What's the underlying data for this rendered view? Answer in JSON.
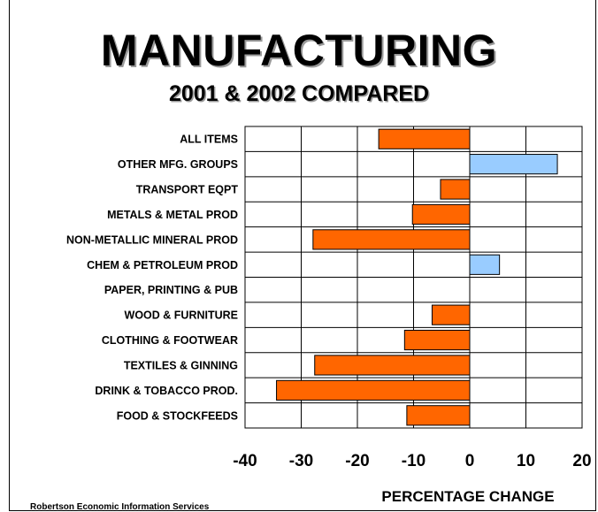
{
  "chart_data": {
    "type": "bar",
    "orientation": "horizontal",
    "title": "MANUFACTURING",
    "subtitle": "2001 & 2002 COMPARED",
    "xlabel": "PERCENTAGE CHANGE",
    "ylabel": "",
    "xlim": [
      -40,
      20
    ],
    "xticks": [
      -40,
      -30,
      -20,
      -10,
      0,
      10,
      20
    ],
    "grid": true,
    "categories": [
      "ALL ITEMS",
      "OTHER MFG. GROUPS",
      "TRANSPORT EQPT",
      "METALS & METAL PROD",
      "NON-METALLIC MINERAL PROD",
      "CHEM & PETROLEUM PROD",
      "PAPER, PRINTING & PUB",
      "WOOD & FURNITURE",
      "CLOTHING & FOOTWEAR",
      "TEXTILES & GINNING",
      "DRINK & TOBACCO PROD.",
      "FOOD & STOCKFEEDS"
    ],
    "values": [
      -16.2,
      15.6,
      -5.2,
      -10.2,
      -27.9,
      5.3,
      0,
      -6.7,
      -11.6,
      -27.6,
      -34.4,
      -11.2
    ],
    "colors": {
      "negative": "#FF6600",
      "positive": "#99CCFF"
    }
  },
  "source": "Robertson Economic Information Services"
}
